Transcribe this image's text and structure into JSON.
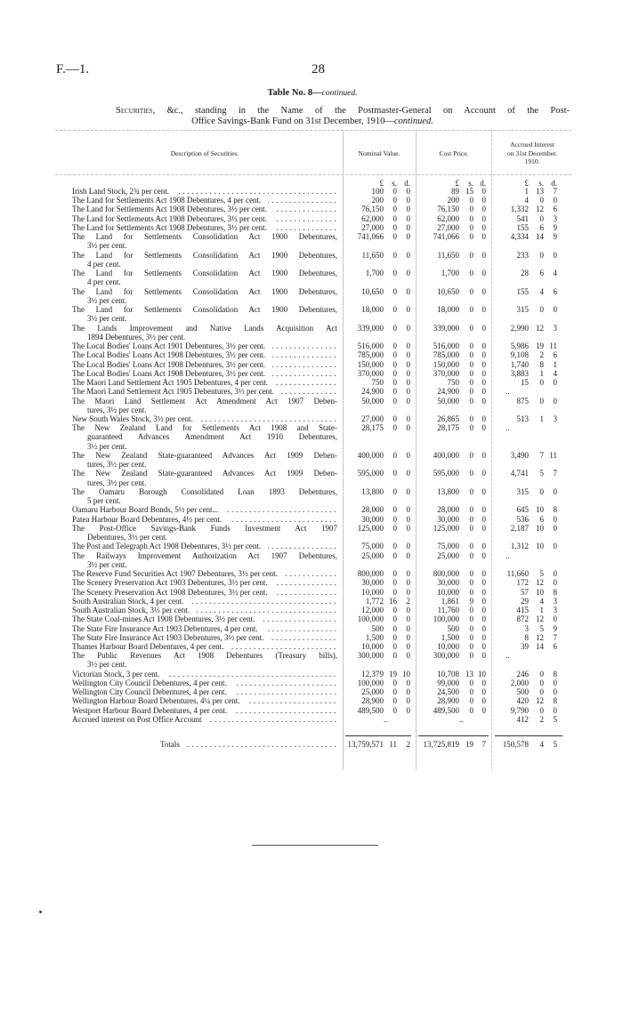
{
  "header": {
    "page_ref": "F.—1.",
    "page_number": "28",
    "table_title": "Table No. 8—",
    "table_title_italic": "continued.",
    "caption_smallcaps": "Securities",
    "caption_line1_rest": ", &c., standing in the Name of the Postmaster-General on Account of the Post-",
    "caption_line2": "Office Savings-Bank Fund on 31st December, 1910—",
    "caption_italic": "continued."
  },
  "columns": {
    "description": "Description of Securities.",
    "nominal": "Nominal Value.",
    "cost": "Cost Price.",
    "accrued": [
      "Accrued Interest",
      "on 31st December.",
      "1910."
    ]
  },
  "units": [
    "£",
    "s.",
    "d."
  ],
  "rows": [
    {
      "desc": [
        "Irish Land Stock, 2¾ per cent."
      ],
      "nominal": [
        "100",
        "0",
        "0"
      ],
      "cost": [
        "89",
        "15",
        "0"
      ],
      "accrued": [
        "1",
        "13",
        "7"
      ]
    },
    {
      "desc": [
        "The Land for Settlements Act 1908 Debentures, 4 per cent."
      ],
      "nominal": [
        "200",
        "0",
        "0"
      ],
      "cost": [
        "200",
        "0",
        "0"
      ],
      "accrued": [
        "4",
        "0",
        "0"
      ]
    },
    {
      "desc": [
        "The Land for Settlements Act 1908 Debentures, 3½ per cent."
      ],
      "nominal": [
        "76,150",
        "0",
        "0"
      ],
      "cost": [
        "76,150",
        "0",
        "0"
      ],
      "accrued": [
        "1,332",
        "12",
        "6"
      ]
    },
    {
      "desc": [
        "The Land for Settlements Act 1908 Debentures, 3½ per cent."
      ],
      "nominal": [
        "62,000",
        "0",
        "0"
      ],
      "cost": [
        "62,000",
        "0",
        "0"
      ],
      "accrued": [
        "541",
        "0",
        "3"
      ]
    },
    {
      "desc": [
        "The Land for Settlements Act 1908 Debentures, 3½ per cent."
      ],
      "nominal": [
        "27,000",
        "0",
        "0"
      ],
      "cost": [
        "27,000",
        "0",
        "0"
      ],
      "accrued": [
        "155",
        "6",
        "9"
      ]
    },
    {
      "desc": [
        "The Land for Settlements Consolidation Act 1900 Debentures,",
        "3½ per cent."
      ],
      "nominal": [
        "741,066",
        "0",
        "0"
      ],
      "cost": [
        "741,066",
        "0",
        "0"
      ],
      "accrued": [
        "4,334",
        "14",
        "9"
      ]
    },
    {
      "desc": [
        "The Land for Settlements Consolidation Act 1900 Debentures,",
        "4 per cent."
      ],
      "nominal": [
        "11,650",
        "0",
        "0"
      ],
      "cost": [
        "11,650",
        "0",
        "0"
      ],
      "accrued": [
        "233",
        "0",
        "0"
      ]
    },
    {
      "desc": [
        "The Land for Settlements Consolidation Act 1900 Debentures,",
        "4 per cent."
      ],
      "nominal": [
        "1,700",
        "0",
        "0"
      ],
      "cost": [
        "1,700",
        "0",
        "0"
      ],
      "accrued": [
        "28",
        "6",
        "4"
      ]
    },
    {
      "desc": [
        "The Land for Settlements Consolidation Act 1900 Debentures,",
        "3½ per cent."
      ],
      "nominal": [
        "10,650",
        "0",
        "0"
      ],
      "cost": [
        "10,650",
        "0",
        "0"
      ],
      "accrued": [
        "155",
        "4",
        "6"
      ]
    },
    {
      "desc": [
        "The Land for Settlements Consolidation Act 1900 Debentures,",
        "3½ per cent."
      ],
      "nominal": [
        "18,000",
        "0",
        "0"
      ],
      "cost": [
        "18,000",
        "0",
        "0"
      ],
      "accrued": [
        "315",
        "0",
        "0"
      ]
    },
    {
      "desc": [
        "The Lands Improvement and Native Lands Acquisition Act",
        "1894 Debentures, 3½ per cent."
      ],
      "nominal": [
        "339,000",
        "0",
        "0"
      ],
      "cost": [
        "339,000",
        "0",
        "0"
      ],
      "accrued": [
        "2,990",
        "12",
        "3"
      ]
    },
    {
      "desc": [
        "The Local Bodies' Loans Act 1901 Debentures, 3½ per cent."
      ],
      "nominal": [
        "516,000",
        "0",
        "0"
      ],
      "cost": [
        "516,000",
        "0",
        "0"
      ],
      "accrued": [
        "5,986",
        "19",
        "11"
      ]
    },
    {
      "desc": [
        "The Local Bodies' Loans Act 1908 Debentures, 3½ per cent."
      ],
      "nominal": [
        "785,000",
        "0",
        "0"
      ],
      "cost": [
        "785,000",
        "0",
        "0"
      ],
      "accrued": [
        "9,108",
        "2",
        "6"
      ]
    },
    {
      "desc": [
        "The Local Bodies' Loans Act 1908 Debentures, 3½ per cent."
      ],
      "nominal": [
        "150,000",
        "0",
        "0"
      ],
      "cost": [
        "150,000",
        "0",
        "0"
      ],
      "accrued": [
        "1,740",
        "8",
        "1"
      ]
    },
    {
      "desc": [
        "The Local Bodies' Loans Act 1908 Debentures, 3½ per cent."
      ],
      "nominal": [
        "370,000",
        "0",
        "0"
      ],
      "cost": [
        "370,000",
        "0",
        "0"
      ],
      "accrued": [
        "3,883",
        "1",
        "4"
      ]
    },
    {
      "desc": [
        "The Maori Land Settlement Act 1905 Debentures, 4 per cent."
      ],
      "nominal": [
        "750",
        "0",
        "0"
      ],
      "cost": [
        "750",
        "0",
        "0"
      ],
      "accrued": [
        "15",
        "0",
        "0"
      ]
    },
    {
      "desc": [
        "The Maori Land Settlement Act 1905 Debentures, 3½ per cent."
      ],
      "nominal": [
        "24,900",
        "0",
        "0"
      ],
      "cost": [
        "24,900",
        "0",
        "0"
      ],
      "accrued": ".."
    },
    {
      "desc": [
        "The Maori Land Settlement Act Amendment Act 1907 Deben-",
        "tures, 3½ per cent."
      ],
      "nominal": [
        "50,000",
        "0",
        "0"
      ],
      "cost": [
        "50,000",
        "0",
        "0"
      ],
      "accrued": [
        "875",
        "0",
        "0"
      ]
    },
    {
      "desc": [
        "New South Wales Stock, 3½ per cent."
      ],
      "nominal": [
        "27,000",
        "0",
        "0"
      ],
      "cost": [
        "26,865",
        "0",
        "0"
      ],
      "accrued": [
        "513",
        "1",
        "3"
      ]
    },
    {
      "desc": [
        "The New Zealand Land for Settlements Act 1908 and State-",
        "guaranteed Advances Amendment Act 1910 Debentures,",
        "3½ per cent."
      ],
      "nominal": [
        "28,175",
        "0",
        "0"
      ],
      "cost": [
        "28,175",
        "0",
        "0"
      ],
      "accrued": ".."
    },
    {
      "desc": [
        "The New Zealand State-guaranteed Advances Act 1909 Deben-",
        "tures, 3½ per cent."
      ],
      "nominal": [
        "400,000",
        "0",
        "0"
      ],
      "cost": [
        "400,000",
        "0",
        "0"
      ],
      "accrued": [
        "3,490",
        "7",
        "11"
      ]
    },
    {
      "desc": [
        "The New Zealand State-guaranteed Advances Act 1909 Deben-",
        "tures, 3½ per cent."
      ],
      "nominal": [
        "595,000",
        "0",
        "0"
      ],
      "cost": [
        "595,000",
        "0",
        "0"
      ],
      "accrued": [
        "4,741",
        "5",
        "7"
      ]
    },
    {
      "desc": [
        "The Oamaru Borough Consolidated Loan 1893 Debentures,",
        "5 per cent."
      ],
      "nominal": [
        "13,800",
        "0",
        "0"
      ],
      "cost": [
        "13,800",
        "0",
        "0"
      ],
      "accrued": [
        "315",
        "0",
        "0"
      ]
    },
    {
      "desc": [
        "Oamaru Harbour Board Bonds, 5½ per cent..."
      ],
      "nominal": [
        "28,000",
        "0",
        "0"
      ],
      "cost": [
        "28,000",
        "0",
        "0"
      ],
      "accrued": [
        "645",
        "10",
        "8"
      ]
    },
    {
      "desc": [
        "Patea Harbour Board Debentures, 4½ per cent."
      ],
      "nominal": [
        "30,000",
        "0",
        "0"
      ],
      "cost": [
        "30,000",
        "0",
        "0"
      ],
      "accrued": [
        "536",
        "6",
        "0"
      ]
    },
    {
      "desc": [
        "The Post-Office Savings-Bank Funds Investment Act 1907",
        "Debentures, 3½ per cent."
      ],
      "nominal": [
        "125,000",
        "0",
        "0"
      ],
      "cost": [
        "125,000",
        "0",
        "0"
      ],
      "accrued": [
        "2,187",
        "10",
        "0"
      ]
    },
    {
      "desc": [
        "The Post and Telegraph Act 1908 Debentures, 3½ per cent."
      ],
      "nominal": [
        "75,000",
        "0",
        "0"
      ],
      "cost": [
        "75,000",
        "0",
        "0"
      ],
      "accrued": [
        "1,312",
        "10",
        "0"
      ]
    },
    {
      "desc": [
        "The Railways Improvement Authorization Act 1907 Debentures,",
        "3½ per cent."
      ],
      "nominal": [
        "25,000",
        "0",
        "0"
      ],
      "cost": [
        "25,000",
        "0",
        "0"
      ],
      "accrued": ".."
    },
    {
      "desc": [
        "The Reserve Fund Securities Act 1907 Debentures, 3½ per cent."
      ],
      "nominal": [
        "800,000",
        "0",
        "0"
      ],
      "cost": [
        "800,000",
        "0",
        "0"
      ],
      "accrued": [
        "11,660",
        "5",
        "0"
      ]
    },
    {
      "desc": [
        "The Scenery Preservation Act 1903 Debentures, 3½ per cent."
      ],
      "nominal": [
        "30,000",
        "0",
        "0"
      ],
      "cost": [
        "30,000",
        "0",
        "0"
      ],
      "accrued": [
        "172",
        "12",
        "0"
      ]
    },
    {
      "desc": [
        "The Scenery Preservation Act 1908 Debentures, 3½ per cent."
      ],
      "nominal": [
        "10,000",
        "0",
        "0"
      ],
      "cost": [
        "10,000",
        "0",
        "0"
      ],
      "accrued": [
        "57",
        "10",
        "8"
      ]
    },
    {
      "desc": [
        "South Australian Stock, 4 per cent."
      ],
      "nominal": [
        "1,772",
        "16",
        "2"
      ],
      "cost": [
        "1,861",
        "9",
        "0"
      ],
      "accrued": [
        "29",
        "4",
        "3"
      ]
    },
    {
      "desc": [
        "South Australian Stock, 3½ per cent."
      ],
      "nominal": [
        "12,000",
        "0",
        "0"
      ],
      "cost": [
        "11,760",
        "0",
        "0"
      ],
      "accrued": [
        "415",
        "1",
        "3"
      ]
    },
    {
      "desc": [
        "The State Coal-mines Act 1908 Debentures, 3½ per cent."
      ],
      "nominal": [
        "100,000",
        "0",
        "0"
      ],
      "cost": [
        "100,000",
        "0",
        "0"
      ],
      "accrued": [
        "872",
        "12",
        "0"
      ]
    },
    {
      "desc": [
        "The State Fire Insurance Act 1903 Debentures, 4 per cent."
      ],
      "nominal": [
        "500",
        "0",
        "0"
      ],
      "cost": [
        "500",
        "0",
        "0"
      ],
      "accrued": [
        "3",
        "5",
        "9"
      ]
    },
    {
      "desc": [
        "The State Fire Insurance Act 1903 Debentures, 3½ per cent."
      ],
      "nominal": [
        "1,500",
        "0",
        "0"
      ],
      "cost": [
        "1,500",
        "0",
        "0"
      ],
      "accrued": [
        "8",
        "12",
        "7"
      ]
    },
    {
      "desc": [
        "Thames Harbour Board Debentures, 4 per cent."
      ],
      "nominal": [
        "10,000",
        "0",
        "0"
      ],
      "cost": [
        "10,000",
        "0",
        "0"
      ],
      "accrued": [
        "39",
        "14",
        "6"
      ]
    },
    {
      "desc": [
        "The Public Revenues Act 1908 Debentures (Treasury bills),",
        "3½ per cent."
      ],
      "nominal": [
        "300,000",
        "0",
        "0"
      ],
      "cost": [
        "300,000",
        "0",
        "0"
      ],
      "accrued": ".."
    },
    {
      "desc": [
        "Victorian Stock, 3 per cent."
      ],
      "nominal": [
        "12,379",
        "19",
        "10"
      ],
      "cost": [
        "10,708",
        "13",
        "10"
      ],
      "accrued": [
        "246",
        "0",
        "8"
      ]
    },
    {
      "desc": [
        "Wellington City Council Debentures, 4 per cent."
      ],
      "nominal": [
        "100,000",
        "0",
        "0"
      ],
      "cost": [
        "99,000",
        "0",
        "0"
      ],
      "accrued": [
        "2,000",
        "0",
        "0"
      ]
    },
    {
      "desc": [
        "Wellington City Council Debentures, 4 per cent."
      ],
      "nominal": [
        "25,000",
        "0",
        "0"
      ],
      "cost": [
        "24,500",
        "0",
        "0"
      ],
      "accrued": [
        "500",
        "0",
        "0"
      ]
    },
    {
      "desc": [
        "Wellington Harbour Board Debentures, 4¼ per cent."
      ],
      "nominal": [
        "28,900",
        "0",
        "0"
      ],
      "cost": [
        "28,900",
        "0",
        "0"
      ],
      "accrued": [
        "420",
        "12",
        "8"
      ]
    },
    {
      "desc": [
        "Westport Harbour Board Debentures, 4 per cent."
      ],
      "nominal": [
        "489,500",
        "0",
        "0"
      ],
      "cost": [
        "489,500",
        "0",
        "0"
      ],
      "accrued": [
        "9,790",
        "0",
        "0"
      ]
    },
    {
      "desc": [
        "Accrued interest on Post Office Account"
      ],
      "nominal": "..",
      "cost": "..",
      "accrued": [
        "412",
        "2",
        "5"
      ]
    }
  ],
  "totals": {
    "label": "Totals",
    "nominal": [
      "13,759,571",
      "11",
      "2"
    ],
    "cost": [
      "13,725,819",
      "19",
      "7"
    ],
    "accrued": [
      "150,578",
      "4",
      "5"
    ]
  }
}
